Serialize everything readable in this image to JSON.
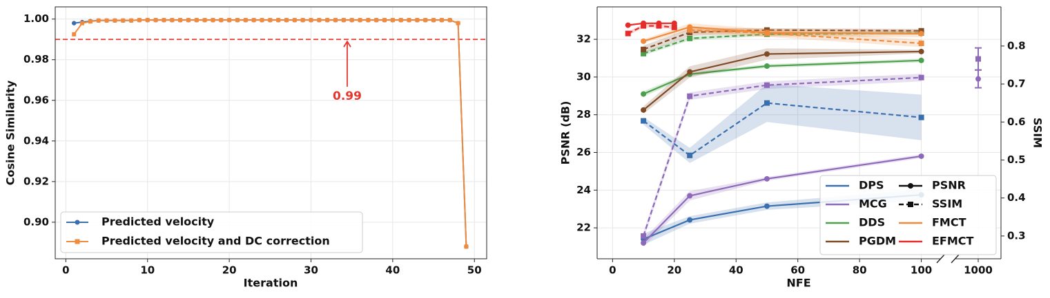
{
  "chart_data": [
    {
      "type": "line",
      "xlabel": "Iteration",
      "ylabel": "Cosine Similarity",
      "xlim": [
        -1.3,
        51.5
      ],
      "ylim": [
        0.882,
        1.006
      ],
      "xticks": [
        0,
        10,
        20,
        30,
        40,
        50
      ],
      "yticks": [
        {
          "value": 0.9,
          "label": "0.90"
        },
        0.92,
        0.94,
        0.96,
        0.98,
        {
          "value": 1,
          "label": "1.00"
        }
      ],
      "grid": true,
      "legend": "lower left",
      "hline": {
        "value": 0.99,
        "color": "#e8352d"
      },
      "x": [
        1,
        2,
        3,
        4,
        5,
        6,
        7,
        8,
        9,
        10,
        11,
        12,
        13,
        14,
        15,
        16,
        17,
        18,
        19,
        20,
        21,
        22,
        23,
        24,
        25,
        26,
        27,
        28,
        29,
        30,
        31,
        32,
        33,
        34,
        35,
        36,
        37,
        38,
        39,
        40,
        41,
        42,
        43,
        44,
        45,
        46,
        47,
        48,
        49
      ],
      "series": [
        {
          "name": "Predicted velocity",
          "color": "#3b6eb0",
          "marker": "circle",
          "values": [
            0.998,
            0.9985,
            0.999,
            0.9993,
            0.9993,
            0.9993,
            0.9993,
            0.9993,
            0.9995,
            0.9995,
            0.9995,
            0.9995,
            0.9995,
            0.9995,
            0.9995,
            0.9995,
            0.9995,
            0.9995,
            0.9995,
            0.9995,
            0.9995,
            0.9995,
            0.9995,
            0.9995,
            0.9995,
            0.9995,
            0.9995,
            0.9995,
            0.9995,
            0.9995,
            0.9995,
            0.9995,
            0.9995,
            0.9995,
            0.9995,
            0.9995,
            0.9995,
            0.9995,
            0.9995,
            0.9995,
            0.9995,
            0.9995,
            0.9995,
            0.9995,
            0.9995,
            0.9995,
            0.9995,
            0.998,
            0.888
          ]
        },
        {
          "name": "Predicted velocity and DC correction",
          "color": "#f08a3c",
          "marker": "square",
          "values": [
            0.9925,
            0.998,
            0.9988,
            0.9993,
            0.9993,
            0.9993,
            0.9993,
            0.9993,
            0.9995,
            0.9995,
            0.9995,
            0.9995,
            0.9995,
            0.9995,
            0.9995,
            0.9995,
            0.9995,
            0.9995,
            0.9995,
            0.9995,
            0.9995,
            0.9995,
            0.9995,
            0.9995,
            0.9995,
            0.9995,
            0.9995,
            0.9995,
            0.9995,
            0.9995,
            0.9995,
            0.9995,
            0.9995,
            0.9995,
            0.9995,
            0.9995,
            0.9995,
            0.9995,
            0.9995,
            0.9995,
            0.9995,
            0.9995,
            0.9995,
            0.9995,
            0.9995,
            0.9995,
            0.9995,
            0.998,
            0.888
          ]
        }
      ]
    },
    {
      "type": "line",
      "xlabel": "NFE",
      "ylabel": "PSNR (dB)",
      "y2label": "SSIM",
      "xlim": [
        -5,
        1015
      ],
      "xbreak": [
        103,
        990
      ],
      "ylim": [
        20.36,
        33.72
      ],
      "y2lim": [
        0.24,
        0.903
      ],
      "xticks": [
        0,
        20,
        40,
        60,
        80,
        100,
        1000
      ],
      "yticks": [
        22,
        24,
        26,
        28,
        30,
        32
      ],
      "y2ticks": [
        0.3,
        0.4,
        0.5,
        0.6,
        0.7,
        0.8
      ],
      "grid": true,
      "legend": "lower right",
      "styles": [
        {
          "name": "PSNR",
          "dashed": false,
          "marker": "circle"
        },
        {
          "name": "SSIM",
          "dashed": true,
          "marker": "square"
        }
      ],
      "series": [
        {
          "name": "DPS",
          "color": "#3a6fad",
          "x": [
            10,
            25,
            50,
            100
          ],
          "values": [
            21.4,
            22.42,
            23.15,
            23.75
          ],
          "error": [
            0.3,
            0.2,
            0.2,
            0.3
          ],
          "y2_values": [
            0.603,
            0.512,
            0.65,
            0.612
          ],
          "y2_error": [
            0.01,
            0.02,
            0.05,
            0.06
          ]
        },
        {
          "name": "MCG",
          "color": "#8d69b8",
          "x": [
            10,
            25,
            50,
            100,
            1000
          ],
          "values": [
            21.2,
            23.7,
            24.6,
            25.8,
            29.9
          ],
          "error": [
            0.2,
            0.25,
            0.1,
            0.1,
            0.47
          ],
          "y2_values": [
            0.3,
            0.668,
            0.697,
            0.717,
            0.766
          ],
          "y2_error": [
            0.01,
            0.01,
            0.01,
            0.01,
            0.029
          ]
        },
        {
          "name": "DDS",
          "color": "#4c9f4c",
          "x": [
            10,
            25,
            50,
            100
          ],
          "values": [
            29.1,
            30.15,
            30.58,
            30.88
          ],
          "error": [
            0.15,
            0.1,
            0.1,
            0.1
          ],
          "y2_values": [
            0.78,
            0.82,
            0.831,
            0.834
          ],
          "y2_error": [
            0.005,
            0.005,
            0.005,
            0.005
          ]
        },
        {
          "name": "PGDM",
          "color": "#7f4a26",
          "x": [
            10,
            25,
            50,
            100
          ],
          "values": [
            28.25,
            30.27,
            31.22,
            31.35
          ],
          "error": [
            0.2,
            0.3,
            0.3,
            0.1
          ],
          "y2_values": [
            0.791,
            0.836,
            0.842,
            0.84
          ],
          "y2_error": [
            0.01,
            0.01,
            0.005,
            0.005
          ]
        },
        {
          "name": "FMCT",
          "color": "#f08a3c",
          "x": [
            10,
            25,
            50,
            100
          ],
          "values": [
            31.9,
            32.65,
            32.35,
            32.3
          ],
          "error": [
            0.1,
            0.2,
            0.2,
            0.2
          ],
          "y2_values": [
            null,
            0.842,
            0.834,
            0.807
          ],
          "y2_error": [
            null,
            0.01,
            0.01,
            0.01
          ]
        },
        {
          "name": "EFMCT",
          "color": "#e42d2a",
          "x": [
            5,
            10,
            15,
            20
          ],
          "values": [
            32.75,
            32.85,
            32.85,
            32.85
          ],
          "error": [
            0.05,
            0.05,
            0.05,
            0.05
          ],
          "y2_values": [
            0.833,
            0.853,
            0.853,
            0.849
          ],
          "y2_error": [
            0.005,
            0.005,
            0.005,
            0.005
          ]
        }
      ]
    }
  ]
}
